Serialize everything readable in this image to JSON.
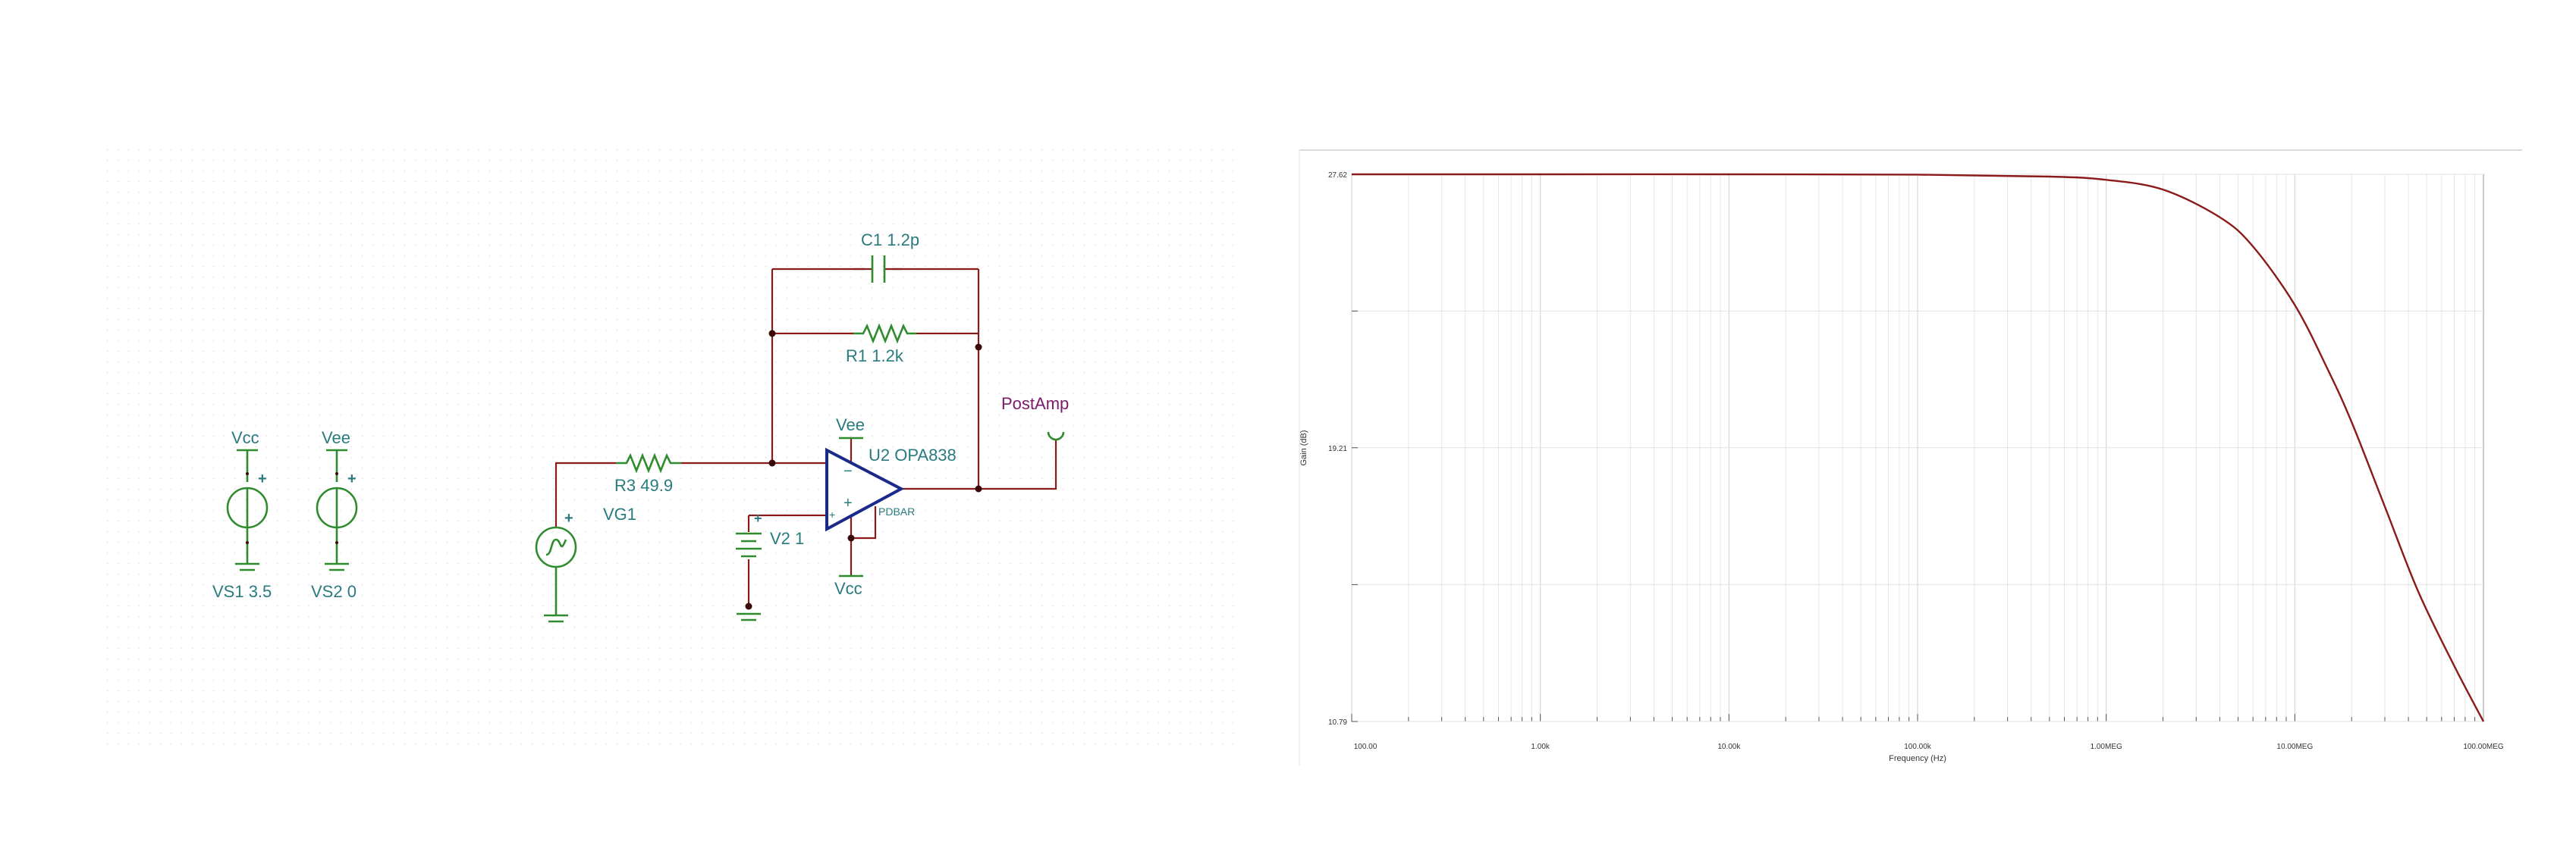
{
  "schematic": {
    "labels": {
      "vcc_top": "Vcc",
      "vee_top": "Vee",
      "vs1": "VS1 3.5",
      "vs2": "VS2 0",
      "c1": "C1 1.2p",
      "r1": "R1 1.2k",
      "r3": "R3 49.9",
      "vg1": "VG1",
      "vee_opamp": "Vee",
      "u2": "U2 OPA838",
      "pdbar": "PDBAR",
      "v2": "V2 1",
      "vcc_opamp": "Vcc",
      "postamp": "PostAmp",
      "plus": "+",
      "minus": "−"
    },
    "colors": {
      "wire": "#8b1a1a",
      "component": "#2e8b2e",
      "opamp": "#1a2a8a",
      "label": "#2a7b80",
      "net_label": "#7a1a6a"
    }
  },
  "chart_data": {
    "type": "line",
    "title": "",
    "xlabel": "Frequency (Hz)",
    "ylabel": "Gain (dB)",
    "x_scale": "log",
    "xlim": [
      100,
      100000000
    ],
    "ylim": [
      10.79,
      27.62
    ],
    "y_ticks": [
      10.79,
      19.21,
      27.62
    ],
    "y_tick_labels": [
      "10.79",
      "19.21",
      "27.62"
    ],
    "x_tick_labels": [
      {
        "x": 100,
        "label": "100.00"
      },
      {
        "x": 1000,
        "label": "1.00k"
      },
      {
        "x": 10000,
        "label": "10.00k"
      },
      {
        "x": 100000,
        "label": "100.00k"
      },
      {
        "x": 1000000,
        "label": "1.00MEG"
      },
      {
        "x": 10000000,
        "label": "10.00MEG"
      },
      {
        "x": 100000000,
        "label": "100.00MEG"
      }
    ],
    "grid": true,
    "series": [
      {
        "color": "#8b1a1a",
        "x": [
          100,
          1000,
          10000,
          100000,
          500000,
          1000000,
          2000000,
          4000000,
          6000000,
          10000000,
          15000000,
          20000000,
          30000000,
          45000000,
          70000000,
          100000000
        ],
        "y": [
          27.62,
          27.62,
          27.62,
          27.61,
          27.55,
          27.45,
          27.15,
          26.3,
          25.4,
          23.6,
          21.6,
          20.0,
          17.4,
          14.8,
          12.5,
          10.79
        ]
      }
    ]
  }
}
